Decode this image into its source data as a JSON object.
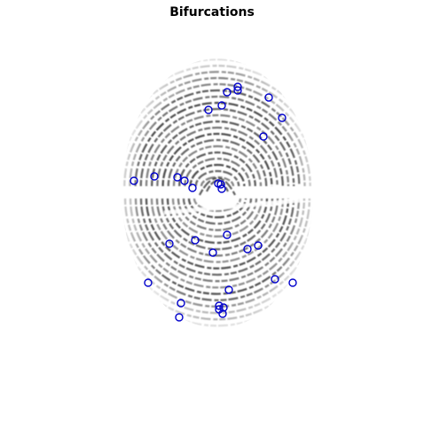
{
  "figure": {
    "title": "Bifurcations"
  },
  "colors": {
    "marker": "#0000cc",
    "ink": "#202020",
    "background": "#ffffff"
  },
  "marker_shape": "circle-outline",
  "image_kind": "fingerprint-grayscale"
}
